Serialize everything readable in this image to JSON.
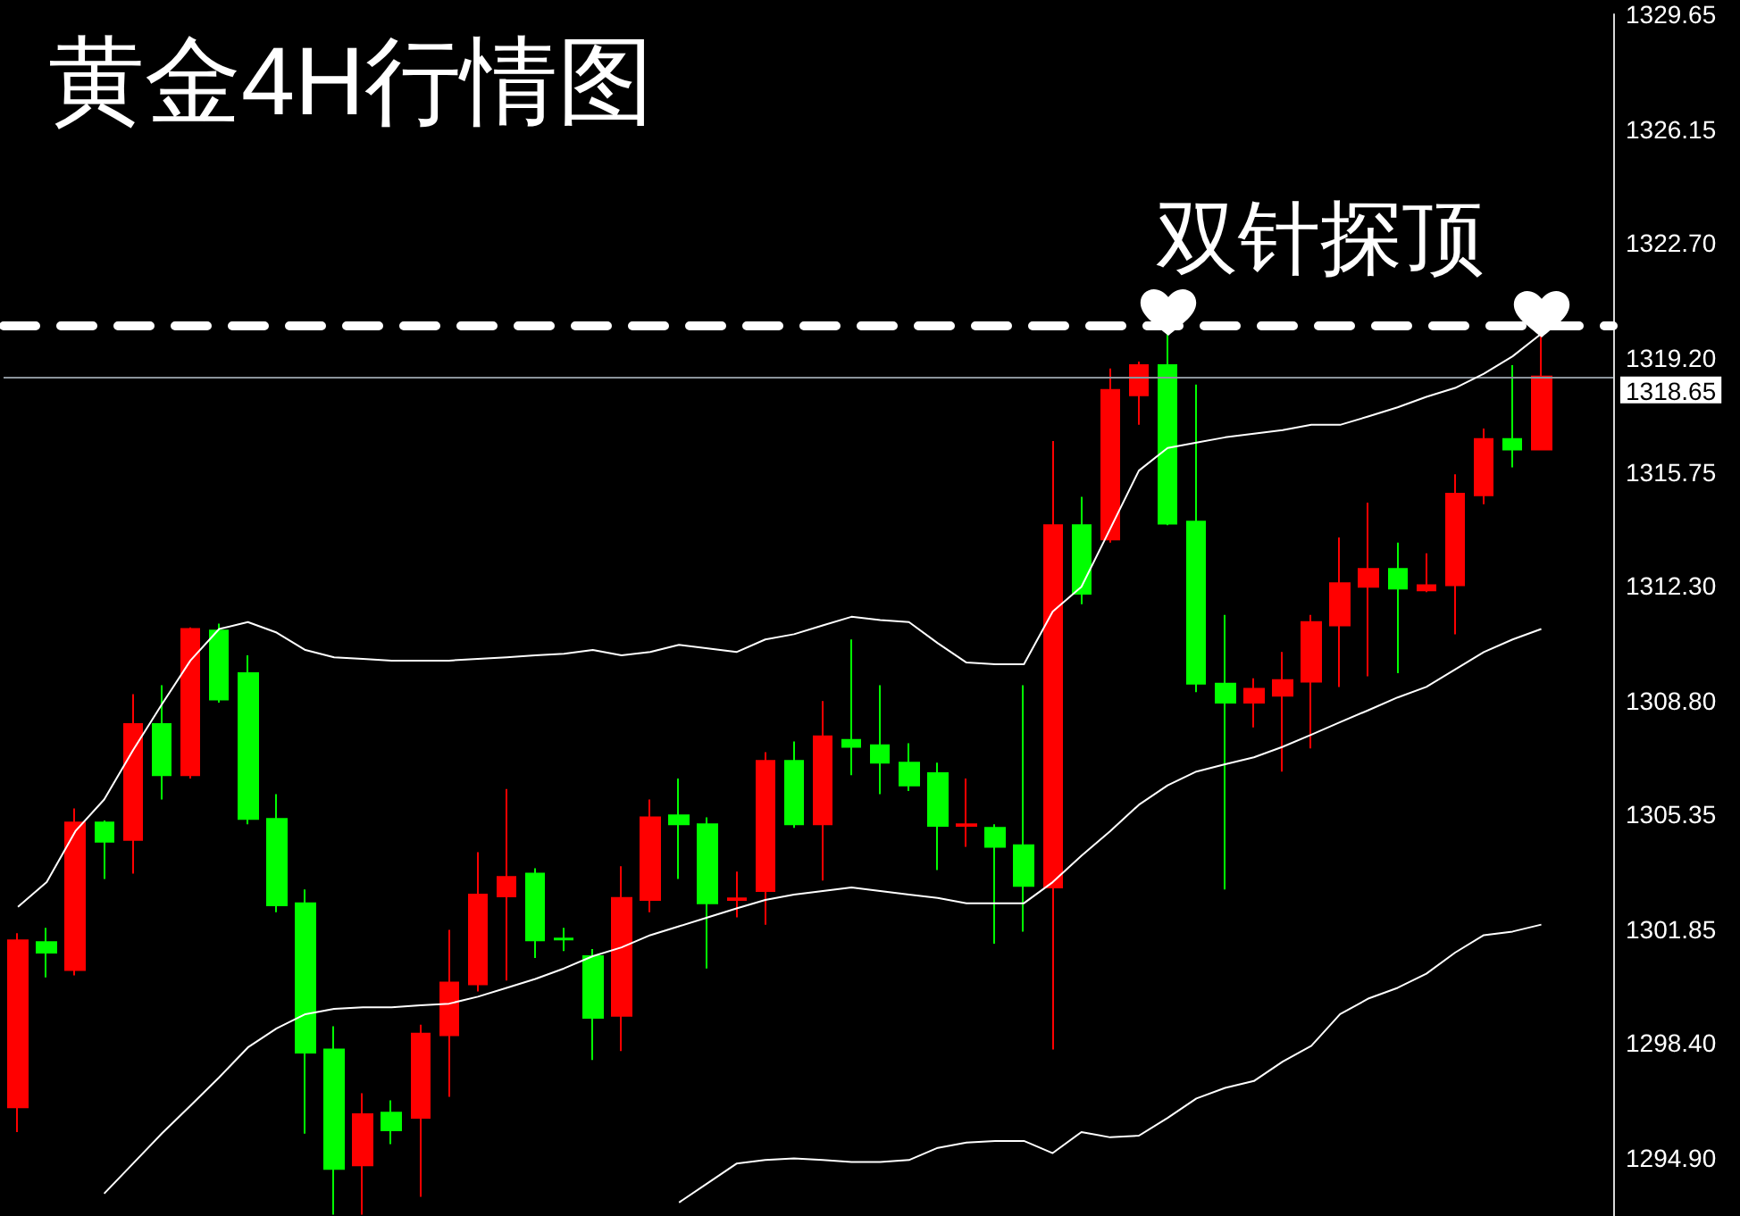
{
  "chart_data": {
    "type": "candlestick",
    "title": "黄金4H行情图",
    "categories": [
      null,
      null,
      null,
      null,
      null,
      null,
      null,
      null,
      null,
      null,
      null,
      null,
      null,
      null,
      null,
      null,
      null,
      null,
      null,
      null,
      null,
      null,
      null,
      null,
      null,
      null,
      null,
      null,
      null,
      null,
      null,
      null,
      null,
      null,
      null,
      null,
      null,
      null,
      null,
      null,
      null,
      null,
      null,
      null,
      null,
      null,
      null,
      null,
      null,
      null,
      null,
      null,
      null,
      null
    ],
    "ohlc": [
      [
        1296.45,
        1301.74,
        1295.7,
        1301.52
      ],
      [
        1301.47,
        1301.9,
        1300.4,
        1301.15
      ],
      [
        1300.62,
        1305.53,
        1300.46,
        1305.1
      ],
      [
        1305.1,
        1305.16,
        1303.39,
        1304.52
      ],
      [
        1304.57,
        1309.0,
        1303.55,
        1308.09
      ],
      [
        1308.09,
        1309.27,
        1305.8,
        1306.54
      ],
      [
        1306.54,
        1311.03,
        1306.44,
        1310.98
      ],
      [
        1310.93,
        1311.14,
        1308.74,
        1308.84
      ],
      [
        1309.64,
        1310.18,
        1305.05,
        1305.21
      ],
      [
        1305.21,
        1305.96,
        1302.38,
        1302.59
      ],
      [
        1302.65,
        1303.07,
        1295.65,
        1298.11
      ],
      [
        1298.21,
        1298.91,
        1293.19,
        1294.58
      ],
      [
        1294.69,
        1296.88,
        1293.19,
        1296.24
      ],
      [
        1296.29,
        1296.66,
        1295.33,
        1295.75
      ],
      [
        1296.13,
        1298.96,
        1293.73,
        1298.69
      ],
      [
        1298.64,
        1301.84,
        1296.77,
        1300.24
      ],
      [
        1300.19,
        1304.2,
        1299.97,
        1302.91
      ],
      [
        1302.86,
        1306.12,
        1300.3,
        1303.45
      ],
      [
        1303.55,
        1303.71,
        1300.99,
        1301.52
      ],
      [
        1301.58,
        1301.9,
        1301.2,
        1301.55
      ],
      [
        1301.04,
        1301.26,
        1297.89,
        1299.17
      ],
      [
        1299.23,
        1303.77,
        1298.16,
        1302.81
      ],
      [
        1302.75,
        1305.8,
        1302.38,
        1305.26
      ],
      [
        1305.32,
        1306.44,
        1303.39,
        1305.05
      ],
      [
        1305.05,
        1305.26,
        1300.67,
        1302.65
      ],
      [
        1302.75,
        1303.61,
        1302.22,
        1302.8
      ],
      [
        1303.02,
        1307.24,
        1302.0,
        1306.97
      ],
      [
        1306.97,
        1307.56,
        1304.94,
        1305.05
      ],
      [
        1305.05,
        1308.79,
        1303.34,
        1307.72
      ],
      [
        1307.61,
        1310.66,
        1306.54,
        1307.4
      ],
      [
        1307.45,
        1309.27,
        1305.96,
        1306.92
      ],
      [
        1306.92,
        1307.51,
        1306.06,
        1306.23
      ],
      [
        1306.6,
        1306.92,
        1303.66,
        1305.0
      ],
      [
        1305.0,
        1306.44,
        1304.36,
        1305.05
      ],
      [
        1304.94,
        1305.05,
        1301.42,
        1304.36
      ],
      [
        1304.41,
        1309.27,
        1301.79,
        1303.18
      ],
      [
        1303.13,
        1316.69,
        1298.21,
        1314.13
      ],
      [
        1314.13,
        1314.99,
        1311.73,
        1312.05
      ],
      [
        1313.7,
        1318.89,
        1313.6,
        1318.24
      ],
      [
        1318.08,
        1319.1,
        1317.18,
        1318.99
      ],
      [
        1318.99,
        1320.01,
        1314.13,
        1314.18
      ],
      [
        1314.24,
        1318.4,
        1309.06,
        1309.32
      ],
      [
        1309.32,
        1311.41,
        1303.07,
        1308.74
      ],
      [
        1308.74,
        1309.48,
        1307.99,
        1309.16
      ],
      [
        1308.95,
        1310.28,
        1306.65,
        1309.43
      ],
      [
        1309.38,
        1311.41,
        1307.35,
        1311.19
      ],
      [
        1311.09,
        1313.76,
        1309.22,
        1312.37
      ],
      [
        1312.26,
        1314.82,
        1309.54,
        1312.8
      ],
      [
        1312.8,
        1313.6,
        1309.64,
        1312.21
      ],
      [
        1312.15,
        1313.28,
        1312.1,
        1312.31
      ],
      [
        1312.31,
        1315.68,
        1310.82,
        1315.09
      ],
      [
        1315.04,
        1317.07,
        1314.77,
        1316.75
      ],
      [
        1316.75,
        1318.99,
        1315.89,
        1316.43
      ],
      [
        1316.43,
        1319.95,
        1316.43,
        1318.65
      ]
    ],
    "colors": [
      "#ff0000",
      "#00ff00",
      "#ff0000",
      "#00ff00",
      "#ff0000",
      "#00ff00",
      "#ff0000",
      "#00ff00",
      "#00ff00",
      "#00ff00",
      "#00ff00",
      "#00ff00",
      "#ff0000",
      "#00ff00",
      "#ff0000",
      "#ff0000",
      "#ff0000",
      "#ff0000",
      "#00ff00",
      "#00ff00",
      "#00ff00",
      "#ff0000",
      "#ff0000",
      "#00ff00",
      "#00ff00",
      "#ff0000",
      "#ff0000",
      "#00ff00",
      "#ff0000",
      "#00ff00",
      "#00ff00",
      "#00ff00",
      "#00ff00",
      "#ff0000",
      "#00ff00",
      "#00ff00",
      "#ff0000",
      "#00ff00",
      "#ff0000",
      "#ff0000",
      "#00ff00",
      "#00ff00",
      "#00ff00",
      "#ff0000",
      "#ff0000",
      "#ff0000",
      "#ff0000",
      "#ff0000",
      "#00ff00",
      "#ff0000",
      "#ff0000",
      "#ff0000",
      "#00ff00",
      "#ff0000"
    ],
    "series": [
      {
        "type": "line",
        "color": "#ffffff",
        "values": [
          1302.54,
          1303.29,
          1304.84,
          1305.8,
          1307.29,
          1308.68,
          1310.02,
          1310.98,
          1311.19,
          1310.87,
          1310.34,
          1310.12,
          1310.07,
          1310.02,
          1310.02,
          1310.02,
          1310.07,
          1310.12,
          1310.18,
          1310.23,
          1310.34,
          1310.18,
          1310.28,
          1310.5,
          1310.39,
          1310.28,
          1310.66,
          1310.82,
          1311.09,
          1311.35,
          1311.25,
          1311.19,
          1310.55,
          1309.96,
          1309.91,
          1309.91,
          1311.51,
          1312.26,
          1314.02,
          1315.79,
          1316.48,
          1316.64,
          1316.8,
          1316.91,
          1317.02,
          1317.18,
          1317.18,
          1317.44,
          1317.71,
          1318.03,
          1318.3,
          1318.73,
          1319.26,
          1319.95
        ]
      },
      {
        "type": "line",
        "color": "#ffffff",
        "values": [
          null,
          null,
          null,
          1293.83,
          1294.74,
          1295.65,
          1296.5,
          1297.36,
          1298.27,
          1298.85,
          1299.28,
          1299.44,
          1299.49,
          1299.49,
          1299.55,
          1299.6,
          1299.81,
          1300.08,
          1300.35,
          1300.67,
          1301.04,
          1301.31,
          1301.68,
          1301.95,
          1302.22,
          1302.49,
          1302.75,
          1302.91,
          1303.02,
          1303.13,
          1303.02,
          1302.91,
          1302.81,
          1302.65,
          1302.65,
          1302.65,
          1303.29,
          1304.09,
          1304.84,
          1305.64,
          1306.23,
          1306.65,
          1306.87,
          1307.08,
          1307.4,
          1307.77,
          1308.15,
          1308.52,
          1308.9,
          1309.22,
          1309.75,
          1310.28,
          1310.66,
          1310.98
        ]
      },
      {
        "type": "line",
        "color": "#ffffff",
        "values": [
          null,
          null,
          null,
          null,
          null,
          null,
          null,
          null,
          null,
          null,
          null,
          null,
          null,
          null,
          null,
          null,
          null,
          null,
          null,
          null,
          null,
          null,
          null,
          1293.56,
          1294.15,
          1294.74,
          1294.85,
          1294.9,
          1294.85,
          1294.79,
          1294.79,
          1294.85,
          1295.22,
          1295.38,
          1295.43,
          1295.43,
          1295.06,
          1295.7,
          1295.54,
          1295.59,
          1296.13,
          1296.72,
          1297.04,
          1297.25,
          1297.84,
          1298.32,
          1299.28,
          1299.76,
          1300.08,
          1300.51,
          1301.15,
          1301.68,
          1301.79,
          1302.0
        ]
      }
    ],
    "ylim": [
      1293.15,
      1329.65
    ],
    "yticks": [
      {
        "value": 1294.9,
        "label": "1294.90"
      },
      {
        "value": 1298.4,
        "label": "1298.40"
      },
      1301.85,
      1305.35,
      {
        "value": 1308.8,
        "label": "1308.80"
      },
      {
        "value": 1312.3,
        "label": "1312.30"
      },
      1315.75,
      {
        "value": 1319.2,
        "label": "1319.20"
      },
      {
        "value": 1322.7,
        "label": "1322.70"
      },
      1326.15,
      1329.65
    ],
    "tick_labels": "y",
    "ref_lines": [
      {
        "axis": "y",
        "value": 1318.65,
        "label": "1318.65",
        "color": "#8c949c",
        "line_style": "solid"
      },
      {
        "axis": "y",
        "value": 1320.2,
        "label": "双针探顶",
        "color": "#ffffff",
        "line_style": "dashed"
      }
    ]
  }
}
